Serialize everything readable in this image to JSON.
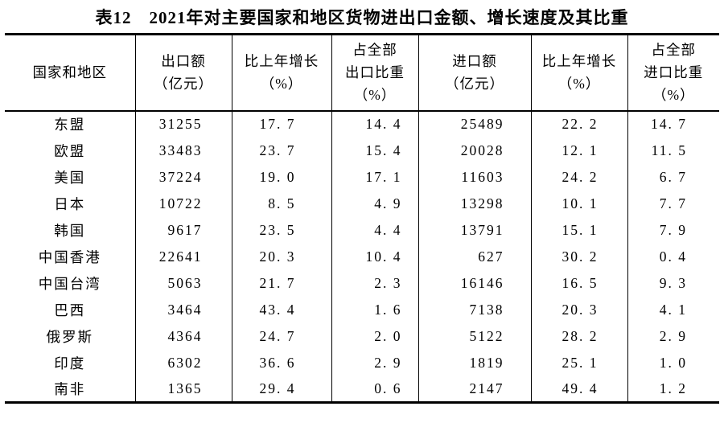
{
  "table": {
    "title": "表12　2021年对主要国家和地区货物进出口金额、增长速度及其比重",
    "columns": [
      {
        "id": "region",
        "lines": [
          "国家和地区"
        ]
      },
      {
        "id": "export-value",
        "lines": [
          "出口额",
          "（亿元）"
        ]
      },
      {
        "id": "export-growth",
        "lines": [
          "比上年增长",
          "（%）"
        ]
      },
      {
        "id": "export-share",
        "lines": [
          "占全部",
          "出口比重",
          "（%）"
        ]
      },
      {
        "id": "import-value",
        "lines": [
          "进口额",
          "（亿元）"
        ]
      },
      {
        "id": "import-growth",
        "lines": [
          "比上年增长",
          "（%）"
        ]
      },
      {
        "id": "import-share",
        "lines": [
          "占全部",
          "进口比重",
          "（%）"
        ]
      }
    ],
    "rows": [
      [
        "东盟",
        "31255",
        "17.7",
        "14.4",
        "25489",
        "22.2",
        "14.7"
      ],
      [
        "欧盟",
        "33483",
        "23.7",
        "15.4",
        "20028",
        "12.1",
        "11.5"
      ],
      [
        "美国",
        "37224",
        "19.0",
        "17.1",
        "11603",
        "24.2",
        "6.7"
      ],
      [
        "日本",
        "10722",
        "8.5",
        "4.9",
        "13298",
        "10.1",
        "7.7"
      ],
      [
        "韩国",
        "9617",
        "23.5",
        "4.4",
        "13791",
        "15.1",
        "7.9"
      ],
      [
        "中国香港",
        "22641",
        "20.3",
        "10.4",
        "627",
        "30.2",
        "0.4"
      ],
      [
        "中国台湾",
        "5063",
        "21.7",
        "2.3",
        "16146",
        "16.5",
        "9.3"
      ],
      [
        "巴西",
        "3464",
        "43.4",
        "1.6",
        "7138",
        "20.3",
        "4.1"
      ],
      [
        "俄罗斯",
        "4364",
        "24.7",
        "2.0",
        "5122",
        "28.2",
        "2.9"
      ],
      [
        "印度",
        "6302",
        "36.6",
        "2.9",
        "1819",
        "25.1",
        "1.0"
      ],
      [
        "南非",
        "1365",
        "29.4",
        "0.6",
        "2147",
        "49.4",
        "1.2"
      ]
    ]
  }
}
